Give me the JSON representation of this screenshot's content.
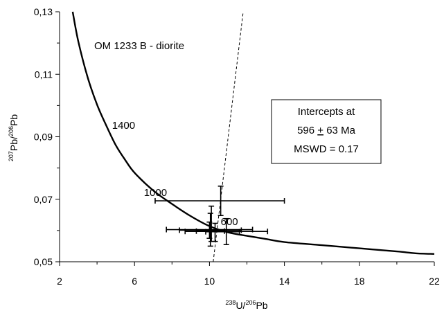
{
  "chart_data": {
    "type": "scatter",
    "title": "OM  1233 B -  diorite",
    "xlabel": {
      "sup1": "238",
      "base1": "U/",
      "sup2": "206",
      "base2": "Pb"
    },
    "ylabel": {
      "sup1": "207",
      "base1": "Pb/",
      "sup2": "206",
      "base2": "Pb"
    },
    "xlim": [
      2,
      22
    ],
    "ylim": [
      0.05,
      0.13
    ],
    "x_ticks": [
      2,
      6,
      10,
      14,
      18,
      22
    ],
    "x_tick_labels": [
      "2",
      "6",
      "10",
      "14",
      "18",
      "22"
    ],
    "y_ticks": [
      0.05,
      0.07,
      0.09,
      0.11,
      0.13
    ],
    "y_tick_labels": [
      "0,05",
      "0,07",
      "0,09",
      "0,11",
      "0,13"
    ],
    "concordia": [
      [
        2.7,
        0.13
      ],
      [
        3.0,
        0.1205
      ],
      [
        3.5,
        0.109
      ],
      [
        4.0,
        0.1003
      ],
      [
        4.5,
        0.0935
      ],
      [
        5.0,
        0.0873
      ],
      [
        5.5,
        0.0826
      ],
      [
        6.0,
        0.0785
      ],
      [
        7.0,
        0.0728
      ],
      [
        8.0,
        0.0685
      ],
      [
        9.0,
        0.0646
      ],
      [
        10.0,
        0.0614
      ],
      [
        11.0,
        0.0594
      ],
      [
        12.0,
        0.0583
      ],
      [
        13.0,
        0.0573
      ],
      [
        14.0,
        0.0563
      ],
      [
        16.0,
        0.0553
      ],
      [
        18.0,
        0.0543
      ],
      [
        20.0,
        0.0533
      ],
      [
        21.0,
        0.0527
      ],
      [
        22.0,
        0.0525
      ]
    ],
    "age_labels": [
      {
        "text": "1400",
        "x": 4.8,
        "y": 0.0925
      },
      {
        "text": "1000",
        "x": 6.5,
        "y": 0.0711
      },
      {
        "text": "600",
        "x": 10.6,
        "y": 0.0617
      }
    ],
    "discordia": {
      "x1": 10.2,
      "y1": 0.05,
      "x2": 11.8,
      "y2": 0.13
    },
    "points": [
      {
        "x": 10.6,
        "y": 0.0695,
        "x_err": [
          7.1,
          14.0
        ],
        "y_err": [
          0.0648,
          0.0742
        ]
      },
      {
        "x": 10.0,
        "y": 0.0603,
        "x_err": [
          7.7,
          12.3
        ],
        "y_err": [
          0.0575,
          0.0627
        ]
      },
      {
        "x": 10.3,
        "y": 0.0597,
        "x_err": [
          8.7,
          13.1
        ],
        "y_err": [
          0.0565,
          0.0623
        ]
      },
      {
        "x": 10.9,
        "y": 0.0596,
        "x_err": [
          9.8,
          11.6
        ],
        "y_err": [
          0.0555,
          0.0638
        ]
      },
      {
        "x": 10.1,
        "y": 0.0601,
        "x_err": [
          8.4,
          11.7
        ],
        "y_err": [
          0.0565,
          0.0678
        ]
      },
      {
        "x": 10.05,
        "y": 0.0598,
        "x_err": [
          9.3,
          10.8
        ],
        "y_err": [
          0.055,
          0.0655
        ]
      }
    ],
    "annotation_box": {
      "line1": "Intercepts at",
      "line2_value": "596",
      "line2_pm": "+",
      "line2_err": "63 Ma",
      "line3": "MSWD = 0.17"
    },
    "grid": false,
    "legend": "none"
  }
}
